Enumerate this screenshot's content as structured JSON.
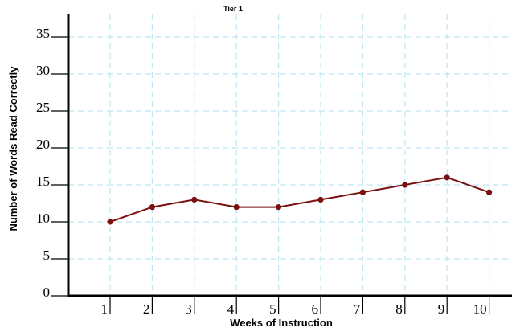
{
  "chart_data": {
    "type": "line",
    "title": "",
    "subtitle": "Tier 1",
    "xlabel": "Weeks of Instruction",
    "ylabel": "Number of Words Read Correctly",
    "categories": [
      "1",
      "2",
      "3",
      "4",
      "5",
      "6",
      "7",
      "8",
      "9",
      "10"
    ],
    "y_ticks": [
      "0",
      "5",
      "10",
      "15",
      "20",
      "25",
      "30",
      "35"
    ],
    "ylim": [
      0,
      35
    ],
    "grid": true,
    "series": [
      {
        "values": [
          10,
          12,
          13,
          12,
          12,
          13,
          14,
          15,
          16,
          14
        ]
      }
    ],
    "colors": {
      "line": "#7a1010",
      "grid": "#bfe6f2",
      "axis": "#000000"
    }
  }
}
